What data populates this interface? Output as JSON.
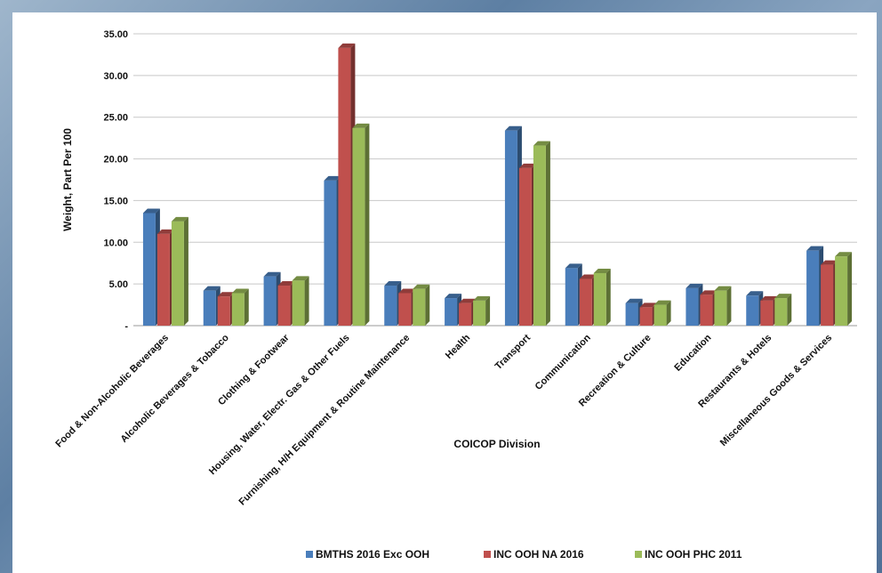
{
  "chart_data": {
    "type": "bar",
    "title": "",
    "xlabel": "COICOP Division",
    "ylabel": "Weight, Part Per 100",
    "ylim": [
      0,
      35
    ],
    "yticks": [
      {
        "value": 0,
        "label": "-"
      },
      {
        "value": 5,
        "label": "5.00"
      },
      {
        "value": 10,
        "label": "10.00"
      },
      {
        "value": 15,
        "label": "15.00"
      },
      {
        "value": 20,
        "label": "20.00"
      },
      {
        "value": 25,
        "label": "25.00"
      },
      {
        "value": 30,
        "label": "30.00"
      },
      {
        "value": 35,
        "label": "35.00"
      }
    ],
    "grid": true,
    "legend_position": "bottom",
    "categories": [
      "Food & Non-Alcoholic Beverages",
      "Alcoholic Beverages & Tobacco",
      "Clothing  & Footwear",
      "Housing, Water, Electr. Gas & Other Fuels",
      "Furnishing, H/H Equipment & Routine Maintenance",
      "Health",
      "Transport",
      "Communication",
      "Recreation & Culture",
      "Education",
      "Restaurants & Hotels",
      "Miscellaneous Goods & Services"
    ],
    "series": [
      {
        "name": "BMTHS 2016 Exc OOH",
        "color": "#4a7ebb",
        "values": [
          13.5,
          4.2,
          5.9,
          17.4,
          4.8,
          3.3,
          23.4,
          6.9,
          2.7,
          4.5,
          3.6,
          9.0
        ]
      },
      {
        "name": "INC OOH NA 2016",
        "color": "#c0504d",
        "values": [
          11.0,
          3.5,
          4.8,
          33.3,
          3.9,
          2.7,
          18.9,
          5.6,
          2.2,
          3.7,
          3.0,
          7.3
        ]
      },
      {
        "name": "INC OOH PHC 2011",
        "color": "#9bbb59",
        "values": [
          12.5,
          3.9,
          5.4,
          23.7,
          4.4,
          3.0,
          21.6,
          6.3,
          2.5,
          4.2,
          3.3,
          8.3
        ]
      }
    ]
  }
}
